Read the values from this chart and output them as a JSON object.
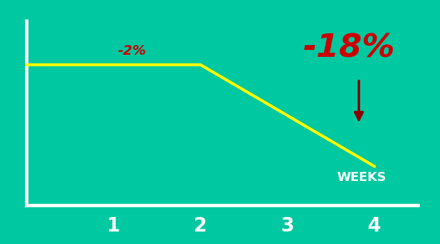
{
  "background_color": "#00C8A0",
  "line_color": "#FFFF00",
  "line_width": 3.0,
  "axis_color": "white",
  "axis_linewidth": 3.5,
  "tick_label_color": "white",
  "tick_label_fontsize": 20,
  "tick_label_fontweight": "bold",
  "xlabel": "WEEKS",
  "xlabel_color": "white",
  "xlabel_fontsize": 13,
  "xlabel_fontweight": "bold",
  "label_2pct": "-2%",
  "label_2pct_color": "#CC0000",
  "label_2pct_fontsize": 14,
  "label_2pct_fontweight": "bold",
  "label_18pct": "-18%",
  "label_18pct_color": "#CC0000",
  "label_18pct_fontsize": 34,
  "label_18pct_fontweight": "bold",
  "arrow_color": "#8B0000",
  "x_data": [
    0.0,
    2.0,
    4.0
  ],
  "y_data": [
    0.8,
    0.8,
    0.22
  ],
  "xlim": [
    -0.05,
    4.6
  ],
  "ylim": [
    0.0,
    1.1
  ],
  "xticks": [
    1,
    2,
    3,
    4
  ],
  "figsize": [
    6.34,
    3.52
  ],
  "dpi": 100
}
